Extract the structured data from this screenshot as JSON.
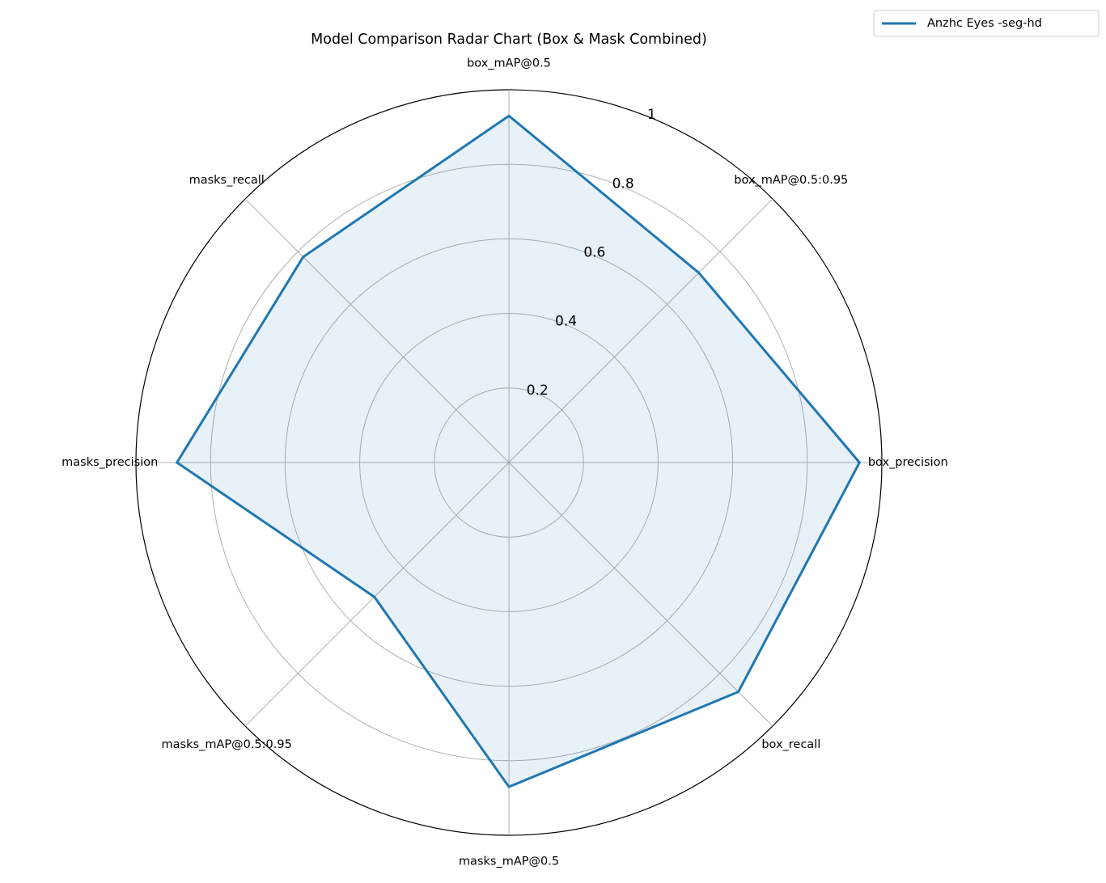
{
  "chart_data": {
    "type": "radar",
    "title": "Model Comparison Radar Chart (Box & Mask Combined)",
    "categories": [
      "box_mAP@0.5",
      "box_mAP@0.5:0.95",
      "box_precision",
      "box_recall",
      "masks_mAP@0.5",
      "masks_mAP@0.5:0.95",
      "masks_precision",
      "masks_recall"
    ],
    "series": [
      {
        "name": "Anzhc Eyes -seg-hd",
        "color": "#1f77b4",
        "values": [
          0.93,
          0.72,
          0.94,
          0.87,
          0.87,
          0.51,
          0.89,
          0.78
        ]
      }
    ],
    "ylim": [
      0,
      1.0
    ],
    "yticks": [
      0.2,
      0.4,
      0.6,
      0.8,
      1.0
    ],
    "grid": true,
    "legend": "upper right"
  }
}
